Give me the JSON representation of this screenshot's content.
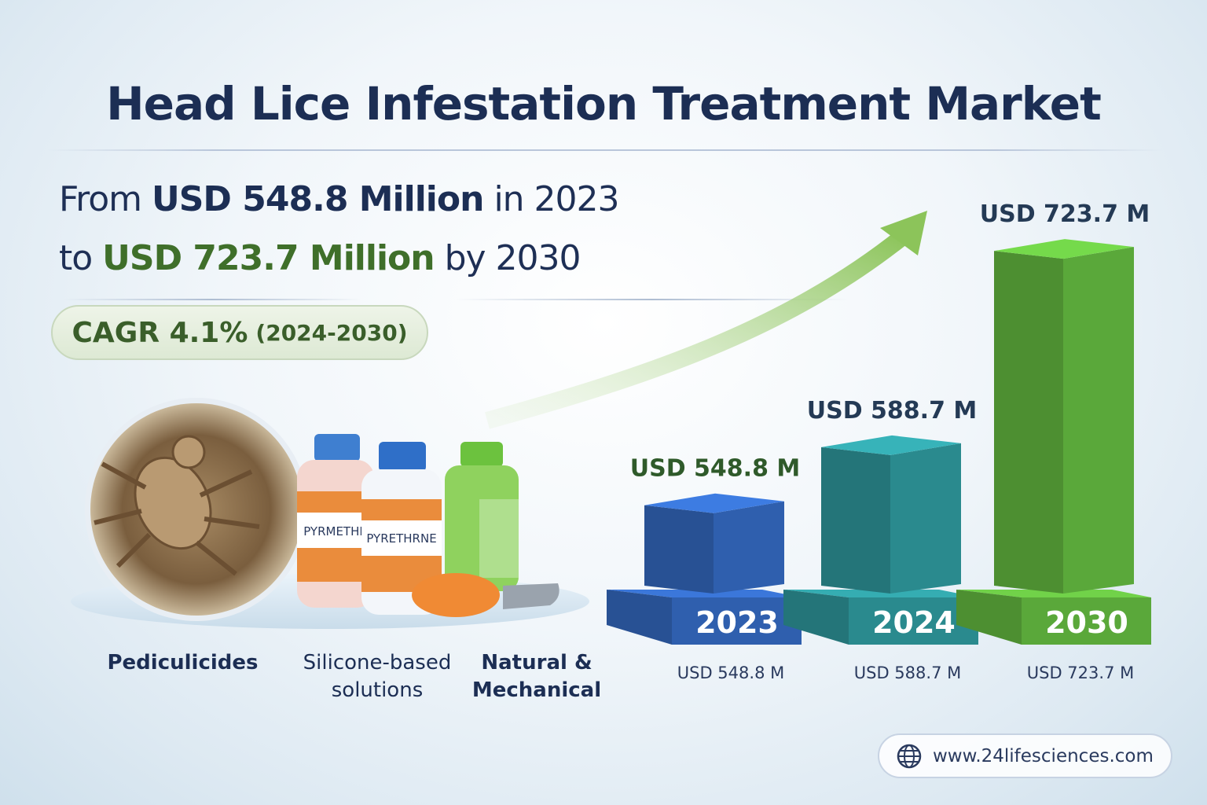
{
  "title": "Head Lice Infestation Treatment Market",
  "subtitle": {
    "line1": {
      "from": "From",
      "start_value": "USD 548.8 Million",
      "mid": "in 2023"
    },
    "line2": {
      "to": "to",
      "end_value": "USD 723.7 Million",
      "by": "by 2030"
    }
  },
  "cagr": {
    "label": "CAGR 4.1%",
    "period": "(2024-2030)"
  },
  "segments": [
    {
      "label": "Pediculicides"
    },
    {
      "label": "Silicone-based solutions"
    },
    {
      "label": "Natural & Mechanical"
    }
  ],
  "product_labels": [
    "PYRMETHR",
    "PYRETHRNE"
  ],
  "website": {
    "icon": "globe-icon",
    "text": "www.24lifesciences.com"
  },
  "colors": {
    "title": "#1c2e54",
    "accent_green": "#3f6f2a",
    "bar_2023": "#2f5fae",
    "bar_2024": "#2a8a8e",
    "bar_2030": "#5aa83a"
  },
  "chart_data": {
    "type": "bar",
    "categories": [
      "2023",
      "2024",
      "2030"
    ],
    "values": [
      548.8,
      588.7,
      723.7
    ],
    "unit": "USD Million",
    "top_labels": [
      "USD 548.8 M",
      "USD 588.7 M",
      "USD 723.7 M"
    ],
    "bottom_labels": [
      "USD 548.8 M",
      "USD 588.7 M",
      "USD 723.7 M"
    ],
    "grid": false,
    "trend_arrow": true
  }
}
